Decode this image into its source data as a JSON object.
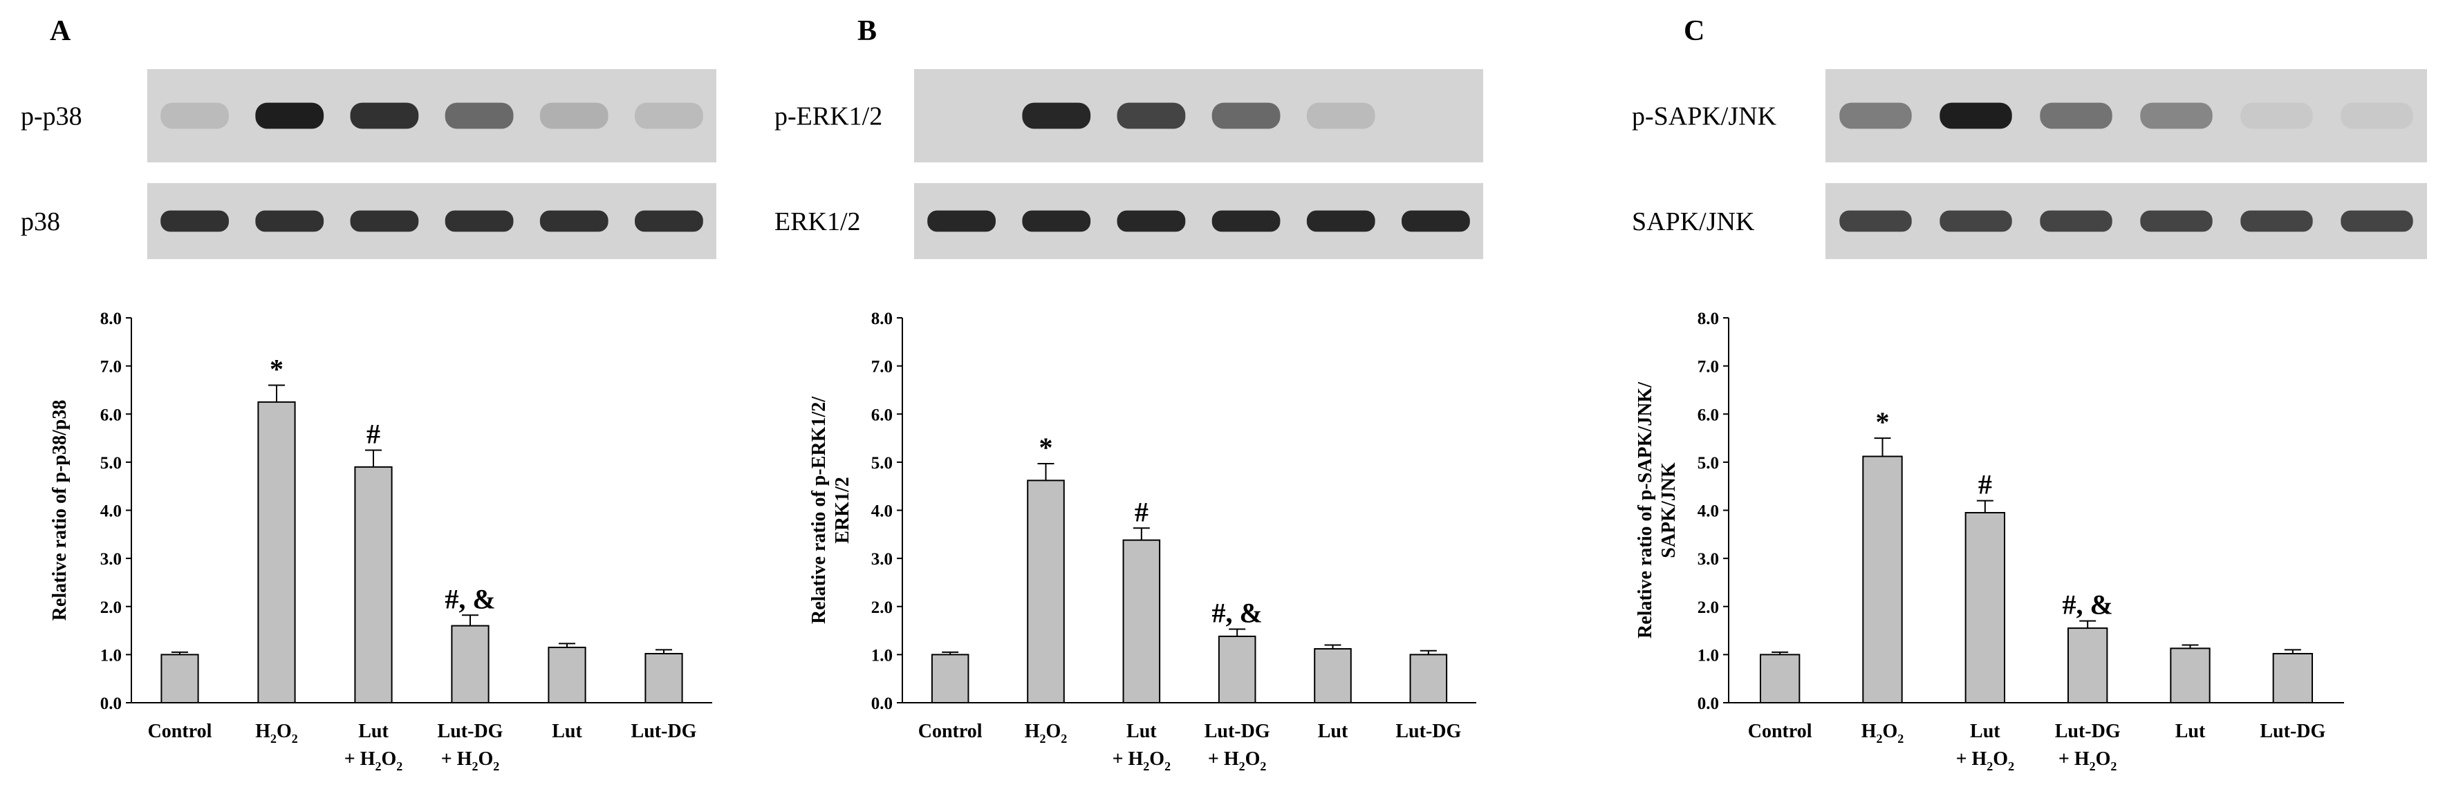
{
  "colors": {
    "bar_fill": "#c0c0c0",
    "bar_stroke": "#000000",
    "blot_bg": "#d4d4d4",
    "band_dark": "#1a1a1a"
  },
  "chart_data": [
    {
      "type": "bar",
      "panel": "A",
      "blots": [
        {
          "label": "p-p38",
          "lane_intensity": [
            0.12,
            0.95,
            0.85,
            0.55,
            0.18,
            0.12
          ]
        },
        {
          "label": "p38",
          "lane_intensity": [
            0.85,
            0.85,
            0.85,
            0.85,
            0.85,
            0.85
          ]
        }
      ],
      "categories": [
        {
          "line1": "Control",
          "line2": ""
        },
        {
          "line1": "H",
          "line1_sub": "2",
          "line1_tail": "O",
          "line1_sub2": "2",
          "line2": ""
        },
        {
          "line1": "Lut",
          "line2": "+ H",
          "line2_sub": "2",
          "line2_tail": "O",
          "line2_sub2": "2"
        },
        {
          "line1": "Lut-DG",
          "line2": "+ H",
          "line2_sub": "2",
          "line2_tail": "O",
          "line2_sub2": "2"
        },
        {
          "line1": "Lut",
          "line2": ""
        },
        {
          "line1": "Lut-DG",
          "line2": ""
        }
      ],
      "values": [
        1.0,
        6.25,
        4.9,
        1.6,
        1.15,
        1.02
      ],
      "errors": [
        0.05,
        0.35,
        0.35,
        0.22,
        0.08,
        0.08
      ],
      "annotations": [
        "",
        "*",
        "#",
        "#, &",
        "",
        ""
      ],
      "ylabel_lines": [
        "Relative ratio of p-p38/p38"
      ],
      "ylim": [
        0,
        8
      ],
      "yticks": [
        "0.0",
        "1.0",
        "2.0",
        "3.0",
        "4.0",
        "5.0",
        "6.0",
        "7.0",
        "8.0"
      ]
    },
    {
      "type": "bar",
      "panel": "B",
      "blots": [
        {
          "label": "p-ERK1/2",
          "lane_intensity": [
            0.0,
            0.9,
            0.75,
            0.55,
            0.12,
            0.0
          ]
        },
        {
          "label": "ERK1/2",
          "lane_intensity": [
            0.9,
            0.9,
            0.9,
            0.9,
            0.9,
            0.9
          ]
        }
      ],
      "categories": [
        {
          "line1": "Control",
          "line2": ""
        },
        {
          "line1": "H",
          "line1_sub": "2",
          "line1_tail": "O",
          "line1_sub2": "2",
          "line2": ""
        },
        {
          "line1": "Lut",
          "line2": "+ H",
          "line2_sub": "2",
          "line2_tail": "O",
          "line2_sub2": "2"
        },
        {
          "line1": "Lut-DG",
          "line2": "+ H",
          "line2_sub": "2",
          "line2_tail": "O",
          "line2_sub2": "2"
        },
        {
          "line1": "Lut",
          "line2": ""
        },
        {
          "line1": "Lut-DG",
          "line2": ""
        }
      ],
      "values": [
        1.0,
        4.62,
        3.38,
        1.38,
        1.12,
        1.0
      ],
      "errors": [
        0.05,
        0.35,
        0.25,
        0.15,
        0.08,
        0.08
      ],
      "annotations": [
        "",
        "*",
        "#",
        "#, &",
        "",
        ""
      ],
      "ylabel_lines": [
        "Relative ratio of p-ERK1/2/",
        "ERK1/2"
      ],
      "ylim": [
        0,
        8
      ],
      "yticks": [
        "0.0",
        "1.0",
        "2.0",
        "3.0",
        "4.0",
        "5.0",
        "6.0",
        "7.0",
        "8.0"
      ]
    },
    {
      "type": "bar",
      "panel": "C",
      "blots": [
        {
          "label": "p-SAPK/JNK",
          "lane_intensity": [
            0.45,
            0.95,
            0.5,
            0.4,
            0.05,
            0.05
          ]
        },
        {
          "label": "SAPK/JNK",
          "lane_intensity": [
            0.75,
            0.75,
            0.75,
            0.75,
            0.75,
            0.75
          ]
        }
      ],
      "categories": [
        {
          "line1": "Control",
          "line2": ""
        },
        {
          "line1": "H",
          "line1_sub": "2",
          "line1_tail": "O",
          "line1_sub2": "2",
          "line2": ""
        },
        {
          "line1": "Lut",
          "line2": "+ H",
          "line2_sub": "2",
          "line2_tail": "O",
          "line2_sub2": "2"
        },
        {
          "line1": "Lut-DG",
          "line2": "+ H",
          "line2_sub": "2",
          "line2_tail": "O",
          "line2_sub2": "2"
        },
        {
          "line1": "Lut",
          "line2": ""
        },
        {
          "line1": "Lut-DG",
          "line2": ""
        }
      ],
      "values": [
        1.0,
        5.12,
        3.95,
        1.55,
        1.13,
        1.02
      ],
      "errors": [
        0.05,
        0.38,
        0.25,
        0.15,
        0.07,
        0.08
      ],
      "annotations": [
        "",
        "*",
        "#",
        "#, &",
        "",
        ""
      ],
      "ylabel_lines": [
        "Relative ratio of p-SAPK/JNK/",
        "SAPK/JNK"
      ],
      "ylim": [
        0,
        8
      ],
      "yticks": [
        "0.0",
        "1.0",
        "2.0",
        "3.0",
        "4.0",
        "5.0",
        "6.0",
        "7.0",
        "8.0"
      ]
    }
  ]
}
